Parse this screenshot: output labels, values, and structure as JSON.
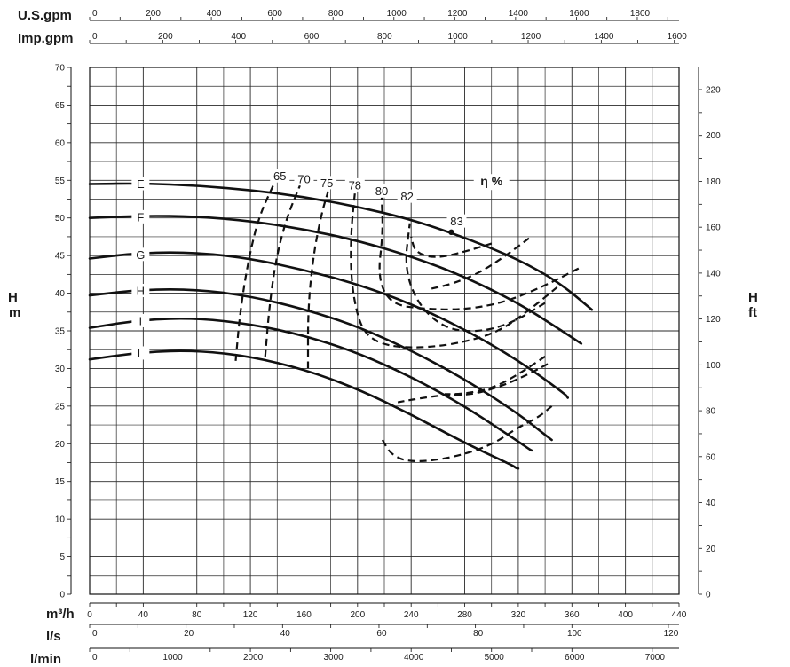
{
  "chart_data": {
    "type": "line",
    "title": "",
    "x_axis": {
      "label": "m³/h",
      "range": [
        0,
        440
      ],
      "ticks": [
        0,
        40,
        80,
        120,
        160,
        200,
        240,
        280,
        320,
        360,
        400,
        440
      ],
      "tick_labels": [
        "0",
        "40",
        "80",
        "120",
        "160",
        "200",
        "240",
        "280",
        "320",
        "360",
        "400",
        "440"
      ]
    },
    "y_axis_left": {
      "label_line1": "H",
      "label_line2": "m",
      "range": [
        0,
        70
      ],
      "ticks": [
        0,
        5,
        10,
        15,
        20,
        25,
        30,
        35,
        40,
        45,
        50,
        55,
        60,
        65,
        70
      ],
      "tick_labels": [
        "0",
        "5",
        "10",
        "15",
        "20",
        "25",
        "30",
        "35",
        "40",
        "45",
        "50",
        "55",
        "60",
        "65",
        "70"
      ]
    },
    "y_axis_right": {
      "label_line1": "H",
      "label_line2": "ft",
      "range": [
        0,
        229.66
      ],
      "ticks": [
        0,
        20,
        40,
        60,
        80,
        100,
        120,
        140,
        160,
        180,
        200,
        220
      ],
      "tick_labels": [
        "0",
        "20",
        "40",
        "60",
        "80",
        "100",
        "120",
        "140",
        "160",
        "180",
        "200",
        "220"
      ]
    },
    "secondary_x_axes": [
      {
        "label": "U.S.gpm",
        "position": "top",
        "max": 1937.2,
        "ticks": [
          0,
          200,
          400,
          600,
          800,
          1000,
          1200,
          1400,
          1600,
          1800
        ],
        "tick_labels": [
          "0",
          "200",
          "400",
          "600",
          "800",
          "1000",
          "1200",
          "1400",
          "1600",
          "1800"
        ]
      },
      {
        "label": "Imp.gpm",
        "position": "top",
        "max": 1612.9,
        "ticks": [
          0,
          200,
          400,
          600,
          800,
          1000,
          1200,
          1400,
          1600
        ],
        "tick_labels": [
          "0",
          "200",
          "400",
          "600",
          "800",
          "1000",
          "1200",
          "1400",
          "1600"
        ]
      },
      {
        "label": "l/s",
        "position": "bottom",
        "max": 122.22,
        "ticks": [
          0,
          20,
          40,
          60,
          80,
          100,
          120
        ],
        "tick_labels": [
          "0",
          "20",
          "40",
          "60",
          "80",
          "100",
          "120"
        ]
      },
      {
        "label": "l/min",
        "position": "bottom",
        "max": 7333.3,
        "ticks": [
          0,
          1000,
          2000,
          3000,
          4000,
          5000,
          6000,
          7000
        ],
        "tick_labels": [
          "0",
          "1000",
          "2000",
          "3000",
          "4000",
          "5000",
          "6000",
          "7000"
        ]
      }
    ],
    "grid": true,
    "series": [
      {
        "name": "E",
        "style": "solid",
        "points": [
          [
            0,
            54.5
          ],
          [
            40,
            54.6
          ],
          [
            80,
            54.3
          ],
          [
            120,
            53.7
          ],
          [
            160,
            52.8
          ],
          [
            200,
            51.5
          ],
          [
            240,
            49.8
          ],
          [
            280,
            47.4
          ],
          [
            320,
            44.5
          ],
          [
            350,
            41.5
          ],
          [
            375,
            37.8
          ]
        ]
      },
      {
        "name": "F",
        "style": "solid",
        "points": [
          [
            0,
            50
          ],
          [
            40,
            50.3
          ],
          [
            80,
            50.2
          ],
          [
            120,
            49.6
          ],
          [
            160,
            48.5
          ],
          [
            200,
            47
          ],
          [
            240,
            44.9
          ],
          [
            280,
            42.2
          ],
          [
            320,
            38.7
          ],
          [
            350,
            35.3
          ],
          [
            367,
            33.3
          ]
        ]
      },
      {
        "name": "G",
        "style": "solid",
        "points": [
          [
            0,
            44.6
          ],
          [
            40,
            45.4
          ],
          [
            80,
            45.4
          ],
          [
            120,
            44.6
          ],
          [
            160,
            43.1
          ],
          [
            200,
            41.2
          ],
          [
            240,
            38.6
          ],
          [
            280,
            35.2
          ],
          [
            320,
            31.1
          ],
          [
            355,
            26.6
          ],
          [
            357,
            26.1
          ]
        ]
      },
      {
        "name": "H",
        "style": "solid",
        "points": [
          [
            0,
            39.7
          ],
          [
            40,
            40.5
          ],
          [
            80,
            40.5
          ],
          [
            120,
            39.6
          ],
          [
            160,
            37.9
          ],
          [
            200,
            35.6
          ],
          [
            240,
            32.4
          ],
          [
            280,
            28.6
          ],
          [
            320,
            24
          ],
          [
            342,
            20.9
          ],
          [
            345,
            20.5
          ]
        ]
      },
      {
        "name": "I",
        "style": "solid",
        "points": [
          [
            0,
            35.4
          ],
          [
            40,
            36.5
          ],
          [
            80,
            36.7
          ],
          [
            120,
            35.9
          ],
          [
            160,
            34.4
          ],
          [
            200,
            32.1
          ],
          [
            240,
            28.9
          ],
          [
            280,
            25
          ],
          [
            320,
            20.3
          ],
          [
            328,
            19.3
          ],
          [
            330,
            19.1
          ]
        ]
      },
      {
        "name": "L",
        "style": "solid",
        "points": [
          [
            0,
            31.2
          ],
          [
            40,
            32.2
          ],
          [
            80,
            32.4
          ],
          [
            120,
            31.6
          ],
          [
            160,
            29.9
          ],
          [
            200,
            27.3
          ],
          [
            240,
            23.9
          ],
          [
            280,
            20.1
          ],
          [
            316,
            17.1
          ],
          [
            318,
            16.8
          ],
          [
            320,
            16.7
          ]
        ]
      }
    ],
    "curve_labels": [
      {
        "text": "E",
        "x": 38,
        "y": 54.5
      },
      {
        "text": "F",
        "x": 38,
        "y": 50.1
      },
      {
        "text": "G",
        "x": 38,
        "y": 45.1
      },
      {
        "text": "H",
        "x": 38,
        "y": 40.3
      },
      {
        "text": "I",
        "x": 38,
        "y": 36.3
      },
      {
        "text": "L",
        "x": 38,
        "y": 32
      }
    ],
    "efficiency_curves_title": "η %",
    "efficiency_curves": [
      {
        "name": "65",
        "style": "dashed",
        "points": [
          [
            109,
            31
          ],
          [
            112,
            37
          ],
          [
            118,
            44
          ],
          [
            126,
            50
          ],
          [
            137,
            54.3
          ]
        ]
      },
      {
        "name": "70",
        "style": "dashed",
        "points": [
          [
            131,
            31.5
          ],
          [
            134,
            38
          ],
          [
            139,
            44.5
          ],
          [
            147,
            50
          ],
          [
            157,
            54.3
          ]
        ]
      },
      {
        "name": "75",
        "style": "dashed",
        "points": [
          [
            163,
            30
          ],
          [
            163,
            38
          ],
          [
            167,
            45
          ],
          [
            173,
            50.5
          ],
          [
            178,
            53.5
          ]
        ]
      },
      {
        "name": "78",
        "style": "dashed",
        "points": [
          [
            349,
            40.8
          ],
          [
            330,
            38
          ],
          [
            305,
            34.8
          ],
          [
            275,
            33.3
          ],
          [
            245,
            32.7
          ],
          [
            222,
            33
          ],
          [
            207,
            34.3
          ],
          [
            200,
            36.8
          ],
          [
            195,
            42
          ],
          [
            195,
            48
          ],
          [
            198,
            53.3
          ]
        ]
      },
      {
        "name": "80",
        "style": "dashed",
        "points": [
          [
            365,
            43.3
          ],
          [
            340,
            41
          ],
          [
            310,
            38.8
          ],
          [
            280,
            37.8
          ],
          [
            250,
            37.9
          ],
          [
            225,
            38.5
          ],
          [
            215,
            42
          ],
          [
            219,
            48
          ],
          [
            218,
            52.7
          ]
        ]
      },
      {
        "name": "82",
        "style": "dashed",
        "points": [
          [
            340,
            38.7
          ],
          [
            315,
            36
          ],
          [
            290,
            34.8
          ],
          [
            265,
            35.3
          ],
          [
            245,
            38.5
          ],
          [
            235,
            43.4
          ],
          [
            239,
            49.3
          ]
        ]
      },
      {
        "name": "83",
        "style": "point",
        "points": [
          [
            270,
            48.1
          ]
        ]
      },
      {
        "name": "",
        "style": "dashed",
        "points": [
          [
            300,
            46.6
          ],
          [
            280,
            45.5
          ],
          [
            258,
            44.6
          ],
          [
            243,
            45.4
          ],
          [
            240,
            47.5
          ]
        ]
      },
      {
        "name": "",
        "style": "dashed",
        "points": [
          [
            328,
            47.3
          ],
          [
            310,
            44.9
          ],
          [
            290,
            42.6
          ],
          [
            270,
            41.2
          ],
          [
            255,
            40.6
          ]
        ]
      },
      {
        "name": "",
        "style": "dashed",
        "points": [
          [
            345,
            25
          ],
          [
            335,
            23.5
          ],
          [
            320,
            22.2
          ],
          [
            300,
            19.8
          ],
          [
            270,
            18.1
          ],
          [
            240,
            17.5
          ],
          [
            225,
            18.5
          ],
          [
            218,
            20.7
          ]
        ]
      },
      {
        "name": "",
        "style": "dashed",
        "points": [
          [
            342,
            30.6
          ],
          [
            325,
            29
          ],
          [
            305,
            27.5
          ],
          [
            285,
            26.5
          ],
          [
            265,
            26.5
          ],
          [
            245,
            26
          ],
          [
            230,
            25.5
          ]
        ]
      },
      {
        "name": "",
        "style": "dashed",
        "points": [
          [
            340,
            31.6
          ],
          [
            320,
            29.2
          ],
          [
            300,
            27.3
          ],
          [
            278,
            26.6
          ],
          [
            265,
            26.6
          ]
        ]
      }
    ],
    "efficiency_labels": [
      {
        "text": "65",
        "x": 142,
        "y": 55.3
      },
      {
        "text": "70",
        "x": 160,
        "y": 54.9
      },
      {
        "text": "75",
        "x": 177,
        "y": 54.4
      },
      {
        "text": "78",
        "x": 198,
        "y": 54.1
      },
      {
        "text": "80",
        "x": 218,
        "y": 53.3
      },
      {
        "text": "82",
        "x": 237,
        "y": 52.6
      },
      {
        "text": "83",
        "x": 274,
        "y": 49.3
      }
    ]
  }
}
